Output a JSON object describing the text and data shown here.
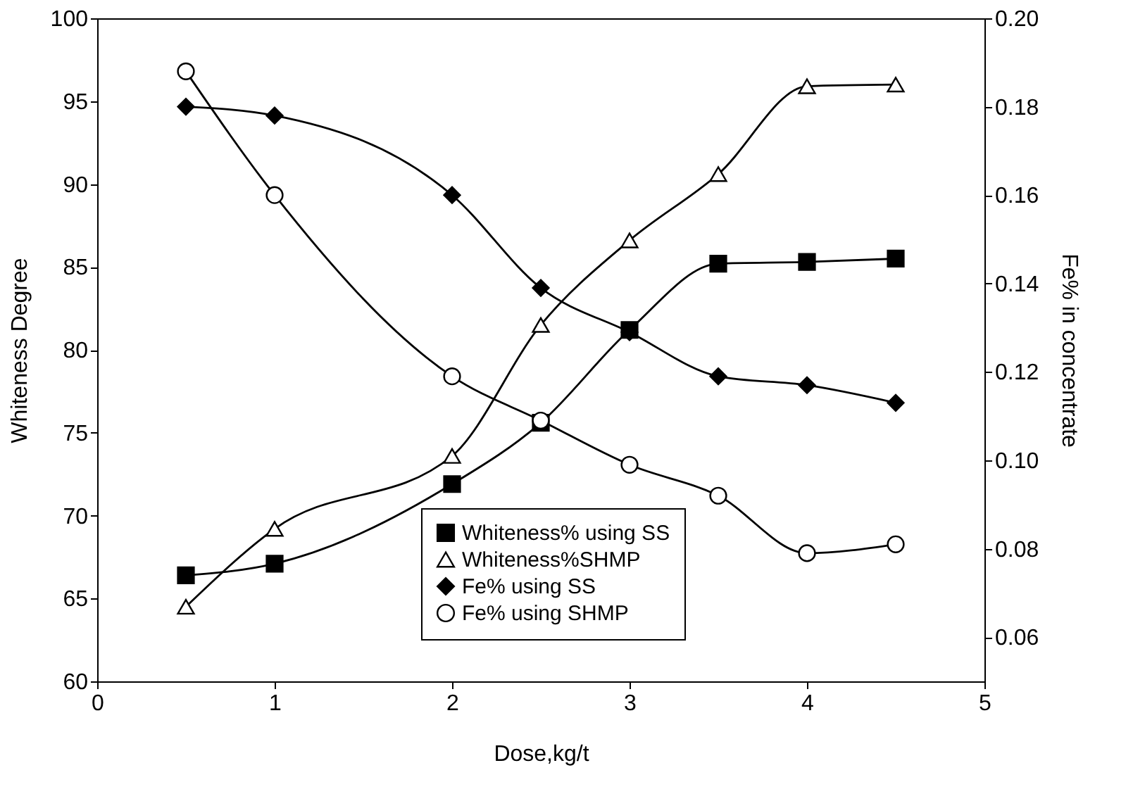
{
  "chart_data": {
    "type": "line",
    "xlabel": "Dose,kg/t",
    "ylabel": "Whiteness Degree",
    "y2label": "Fe% in concentrate",
    "x": [
      0.5,
      1,
      2,
      2.5,
      3,
      3.5,
      4,
      4.5
    ],
    "xlim": [
      0,
      5
    ],
    "xticks": [
      0,
      1,
      2,
      3,
      4,
      5
    ],
    "ylim": [
      60,
      100
    ],
    "yticks": [
      60,
      65,
      70,
      75,
      80,
      85,
      90,
      95,
      100
    ],
    "y2lim": [
      0.05,
      0.2
    ],
    "y2ticks": [
      {
        "value": 0.06,
        "label": "0.06"
      },
      {
        "value": 0.08,
        "label": "0.08"
      },
      {
        "value": 0.1,
        "label": "0.10"
      },
      {
        "value": 0.12,
        "label": "0.12"
      },
      {
        "value": 0.14,
        "label": "0.14"
      },
      {
        "value": 0.16,
        "label": "0.16"
      },
      {
        "value": 0.18,
        "label": "0.18"
      },
      {
        "value": 0.2,
        "label": "0.20"
      }
    ],
    "grid": false,
    "legend": "bottom",
    "line_style": "solid",
    "series": [
      {
        "name": "Whiteness% using SS",
        "color": "#000000",
        "marker": "square",
        "values": [
          66.4,
          67.1,
          71.9,
          75.6,
          81.2,
          85.2,
          85.3,
          85.5
        ]
      },
      {
        "name": "Whiteness%SHMP",
        "color": "#000000",
        "marker": "triangle-open",
        "values": [
          64.5,
          69.2,
          73.6,
          81.5,
          86.6,
          90.6,
          95.9,
          96.0
        ]
      },
      {
        "name": "Fe% using SS",
        "color": "#000000",
        "marker": "diamond",
        "axis": "y2",
        "values": [
          0.18,
          0.178,
          0.16,
          0.139,
          0.129,
          0.119,
          0.117,
          0.113
        ]
      },
      {
        "name": "Fe% using SHMP",
        "color": "#000000",
        "marker": "circle-open",
        "axis": "y2",
        "values": [
          0.188,
          0.16,
          0.119,
          0.109,
          0.099,
          0.092,
          0.079,
          0.081
        ]
      }
    ]
  }
}
